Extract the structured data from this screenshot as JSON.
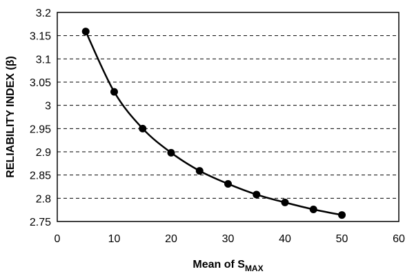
{
  "chart_data": {
    "type": "line",
    "title": "",
    "xlabel": {
      "main": "Mean of S",
      "subscript": "MAX"
    },
    "ylabel": "RELIABILITY  INDEX (β)",
    "xlim": [
      0,
      60
    ],
    "ylim": [
      2.75,
      3.2
    ],
    "x_ticks": [
      "0",
      "10",
      "20",
      "30",
      "40",
      "50",
      "60"
    ],
    "y_ticks": [
      "2.75",
      "2.8",
      "2.85",
      "2.9",
      "2.95",
      "3",
      "3.05",
      "3.1",
      "3.15",
      "3.2"
    ],
    "grid": {
      "horizontal": true,
      "style": "dashed"
    },
    "legend": "none",
    "series": [
      {
        "x": [
          5,
          10,
          15,
          20,
          25,
          30,
          35,
          40,
          45,
          50
        ],
        "y": [
          3.159,
          3.029,
          2.95,
          2.898,
          2.859,
          2.831,
          2.808,
          2.791,
          2.776,
          2.764
        ],
        "color": "#000000",
        "marker": "circle"
      }
    ]
  }
}
